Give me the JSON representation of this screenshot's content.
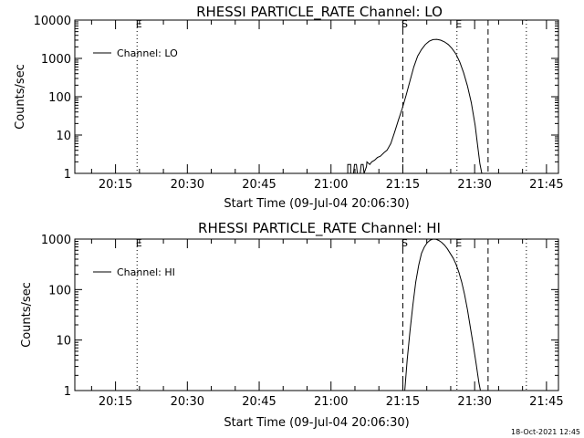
{
  "footer": {
    "timestamp": "18-Oct-2021 12:45"
  },
  "chart_data": [
    {
      "type": "line",
      "title": "RHESSI PARTICLE_RATE Channel: LO",
      "xlabel": "Start Time (09-Jul-04 20:06:30)",
      "ylabel": "Counts/sec",
      "x_unit": "minutes after 20:06:30",
      "xlim": [
        0,
        101
      ],
      "ylim": [
        1,
        10000
      ],
      "yscale": "log",
      "x_ticks": [
        {
          "x": 8.5,
          "label": "20:15"
        },
        {
          "x": 23.5,
          "label": "20:30"
        },
        {
          "x": 38.5,
          "label": "20:45"
        },
        {
          "x": 53.5,
          "label": "21:00"
        },
        {
          "x": 68.5,
          "label": "21:15"
        },
        {
          "x": 83.5,
          "label": "21:30"
        },
        {
          "x": 98.5,
          "label": "21:45"
        }
      ],
      "y_ticks": [
        {
          "y": 1,
          "label": "1"
        },
        {
          "y": 10,
          "label": "10"
        },
        {
          "y": 100,
          "label": "100"
        },
        {
          "y": 1000,
          "label": "1000"
        },
        {
          "y": 10000,
          "label": "10000"
        }
      ],
      "legend": {
        "position": "top-left",
        "entries": [
          "Channel: LO"
        ]
      },
      "vlines": [
        {
          "x": 13.0,
          "style": "dotted",
          "label": "E"
        },
        {
          "x": 68.5,
          "style": "dashed",
          "label": "S"
        },
        {
          "x": 79.8,
          "style": "dotted",
          "label": "E"
        },
        {
          "x": 86.3,
          "style": "dashed",
          "label": ""
        },
        {
          "x": 94.3,
          "style": "dotted",
          "label": ""
        }
      ],
      "series": [
        {
          "x": [
            57.0,
            57.0,
            57.6,
            57.6,
            58.2,
            58.4,
            58.8,
            59.0,
            59.6,
            59.8,
            60.2,
            60.4,
            60.9,
            61.0,
            61.6,
            62.0,
            62.6,
            63.2,
            63.8,
            64.6,
            65.2,
            66.0,
            66.8,
            67.6,
            68.4,
            69.2,
            70.0,
            70.8,
            71.6,
            72.4,
            73.2,
            74.0,
            74.8,
            75.6,
            76.4,
            77.2,
            78.0,
            78.8,
            79.6,
            80.4,
            81.2,
            82.0,
            82.8,
            83.6,
            84.2,
            84.6,
            85.0
          ],
          "y": [
            1,
            1.7,
            1.7,
            1,
            1,
            1.7,
            1.7,
            1,
            1,
            1.7,
            1.7,
            1,
            1.5,
            2,
            1.7,
            2,
            2.2,
            2.6,
            2.8,
            3.5,
            4,
            6,
            12,
            25,
            50,
            110,
            260,
            600,
            1150,
            1700,
            2300,
            2800,
            3100,
            3150,
            3000,
            2700,
            2300,
            1800,
            1300,
            800,
            420,
            190,
            70,
            18,
            4.5,
            1.8,
            1
          ]
        }
      ]
    },
    {
      "type": "line",
      "title": "RHESSI PARTICLE_RATE Channel: HI",
      "xlabel": "Start Time (09-Jul-04 20:06:30)",
      "ylabel": "Counts/sec",
      "x_unit": "minutes after 20:06:30",
      "xlim": [
        0,
        101
      ],
      "ylim": [
        1,
        1000
      ],
      "yscale": "log",
      "x_ticks": [
        {
          "x": 8.5,
          "label": "20:15"
        },
        {
          "x": 23.5,
          "label": "20:30"
        },
        {
          "x": 38.5,
          "label": "20:45"
        },
        {
          "x": 53.5,
          "label": "21:00"
        },
        {
          "x": 68.5,
          "label": "21:15"
        },
        {
          "x": 83.5,
          "label": "21:30"
        },
        {
          "x": 98.5,
          "label": "21:45"
        }
      ],
      "y_ticks": [
        {
          "y": 1,
          "label": "1"
        },
        {
          "y": 10,
          "label": "10"
        },
        {
          "y": 100,
          "label": "100"
        },
        {
          "y": 1000,
          "label": "1000"
        }
      ],
      "legend": {
        "position": "top-left",
        "entries": [
          "Channel: HI"
        ]
      },
      "vlines": [
        {
          "x": 13.0,
          "style": "dotted",
          "label": "E"
        },
        {
          "x": 68.5,
          "style": "dashed",
          "label": "S"
        },
        {
          "x": 79.8,
          "style": "dotted",
          "label": "E"
        },
        {
          "x": 86.3,
          "style": "dashed",
          "label": ""
        },
        {
          "x": 94.3,
          "style": "dotted",
          "label": ""
        }
      ],
      "series": [
        {
          "x": [
            68.9,
            69.4,
            70.0,
            70.6,
            71.2,
            71.8,
            72.4,
            73.0,
            73.6,
            74.2,
            74.8,
            75.4,
            76.0,
            76.6,
            77.2,
            77.8,
            78.4,
            79.0,
            79.6,
            80.2,
            80.8,
            81.4,
            82.0,
            82.6,
            83.2,
            83.8,
            84.4,
            84.7
          ],
          "y": [
            1,
            4,
            15,
            50,
            140,
            300,
            520,
            700,
            850,
            950,
            1000,
            990,
            940,
            860,
            760,
            640,
            520,
            420,
            320,
            220,
            140,
            80,
            40,
            18,
            8,
            3.5,
            1.4,
            1
          ]
        }
      ]
    }
  ]
}
